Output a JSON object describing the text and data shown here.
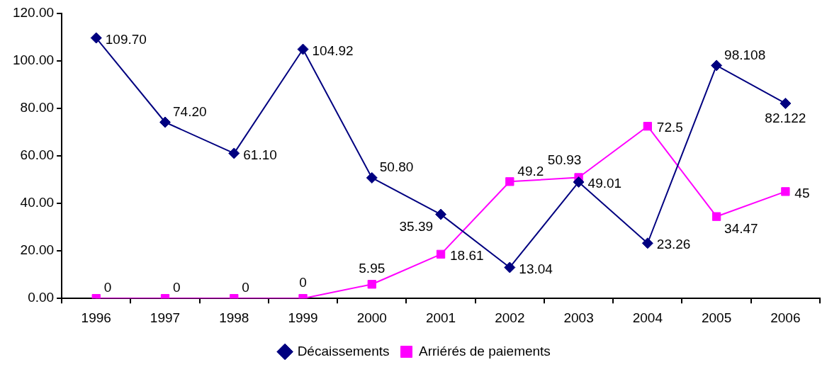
{
  "chart_data": {
    "type": "line",
    "categories": [
      "1996",
      "1997",
      "1998",
      "1999",
      "2000",
      "2001",
      "2002",
      "2003",
      "2004",
      "2005",
      "2006"
    ],
    "series": [
      {
        "name": "Décaissements",
        "color": "#000080",
        "marker": "diamond",
        "values": [
          109.7,
          74.2,
          61.1,
          104.92,
          50.8,
          35.39,
          13.04,
          49.01,
          23.26,
          98.108,
          82.122
        ],
        "value_labels": [
          "109.70",
          "74.20",
          "61.10",
          "104.92",
          "50.80",
          "35.39",
          "13.04",
          "49.01",
          "23.26",
          "98.108",
          "82.122"
        ]
      },
      {
        "name": "Arriérés de paiements",
        "color": "#ff00ff",
        "marker": "square",
        "values": [
          0,
          0,
          0,
          0,
          5.95,
          18.61,
          49.2,
          50.93,
          72.5,
          34.47,
          45
        ],
        "value_labels": [
          "0",
          "0",
          "0",
          "0",
          "5.95",
          "18.61",
          "49.2",
          "50.93",
          "72.5",
          "34.47",
          "45"
        ]
      }
    ],
    "ylim": [
      0,
      120
    ],
    "yticks": [
      {
        "value": 0,
        "label": "0.00"
      },
      {
        "value": 20,
        "label": "20.00"
      },
      {
        "value": 40,
        "label": "40.00"
      },
      {
        "value": 60,
        "label": "60.00"
      },
      {
        "value": 80,
        "label": "80.00"
      },
      {
        "value": 100,
        "label": "100.00"
      },
      {
        "value": 120,
        "label": "120.00"
      }
    ],
    "grid": false,
    "legend": "bottom"
  }
}
